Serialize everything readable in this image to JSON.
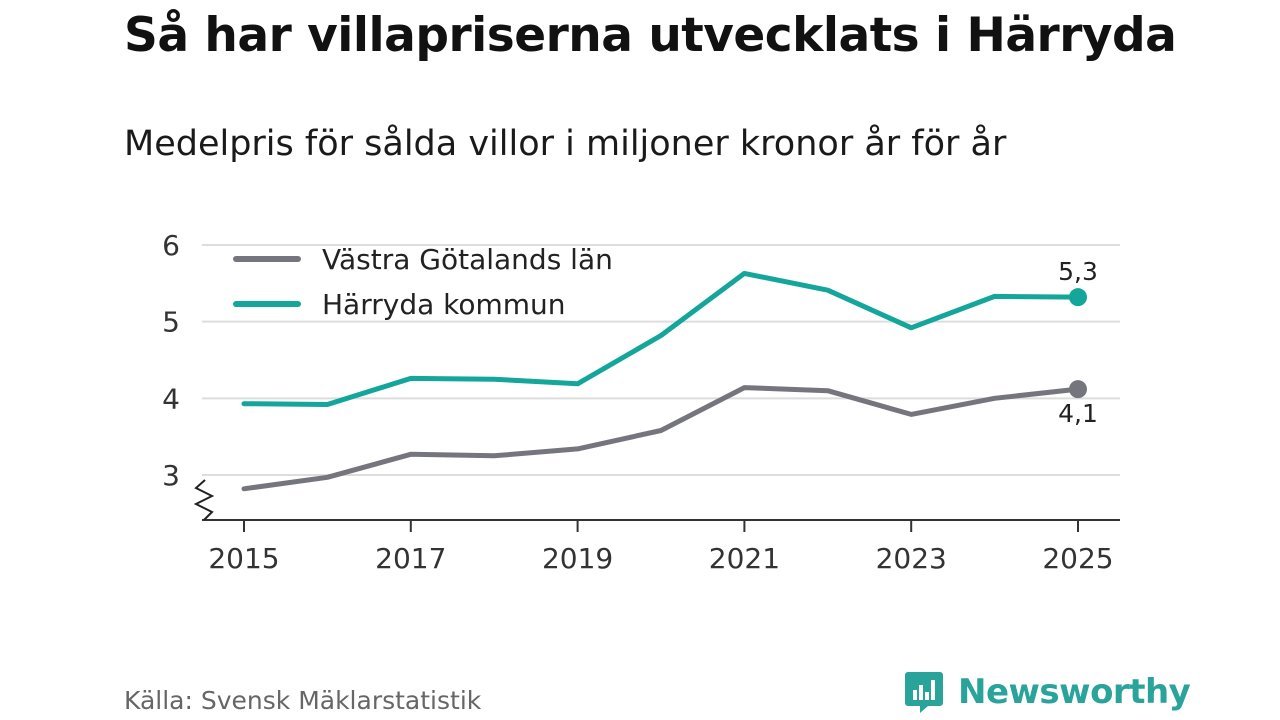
{
  "chart_data": {
    "type": "line",
    "title": "Så har villapriserna utvecklats i Härryda",
    "subtitle": "Medelpris för sålda villor i miljoner kronor år för år",
    "x": [
      2015,
      2016,
      2017,
      2018,
      2019,
      2020,
      2021,
      2022,
      2023,
      2024,
      2025
    ],
    "x_tick_labels": [
      "2015",
      "2017",
      "2019",
      "2021",
      "2023",
      "2025"
    ],
    "y_tick_labels": [
      "3",
      "4",
      "5",
      "6"
    ],
    "ylim": [
      2.4,
      6
    ],
    "grid": true,
    "legend_position": "top-left",
    "series": [
      {
        "name": "Västra Götalands län",
        "color": "#75757d",
        "values": [
          2.82,
          2.97,
          3.27,
          3.25,
          3.34,
          3.58,
          4.14,
          4.1,
          3.79,
          4.0,
          4.12
        ],
        "end_label": "4,1"
      },
      {
        "name": "Härryda kommun",
        "color": "#14a59b",
        "values": [
          3.93,
          3.92,
          4.26,
          4.25,
          4.19,
          4.82,
          5.63,
          5.41,
          4.92,
          5.33,
          5.32
        ],
        "end_label": "5,3"
      }
    ],
    "source": "Källa: Svensk Mäklarstatistik"
  },
  "brand": {
    "name": "Newsworthy",
    "icon": "newsworthy-logo-icon",
    "color": "#2aa39a"
  }
}
